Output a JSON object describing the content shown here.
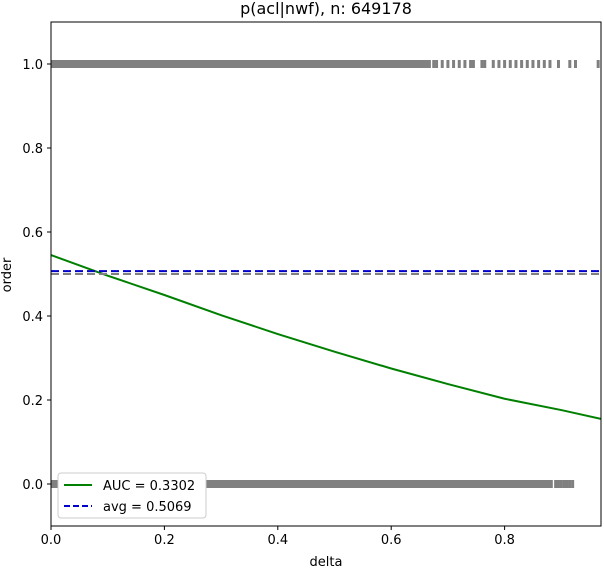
{
  "chart_data": {
    "type": "scatter",
    "title": "p(acl|nwf), n: 649178",
    "xlabel": "delta",
    "ylabel": "order",
    "xlim": [
      0.0,
      0.97
    ],
    "ylim": [
      -0.1,
      1.1
    ],
    "xticks": [
      "0.0",
      "0.2",
      "0.4",
      "0.6",
      "0.8"
    ],
    "yticks": [
      "0.0",
      "0.2",
      "0.4",
      "0.6",
      "0.8",
      "1.0"
    ],
    "grid": false,
    "legend_position": "lower-left",
    "series": [
      {
        "kind": "scatter",
        "color": "#808080",
        "y": 1.0,
        "dense_range": [
          0.0,
          0.67
        ],
        "sparse_x": [
          0.675,
          0.68,
          0.69,
          0.7,
          0.71,
          0.72,
          0.73,
          0.74,
          0.745,
          0.76,
          0.765,
          0.78,
          0.79,
          0.8,
          0.81,
          0.82,
          0.83,
          0.84,
          0.85,
          0.86,
          0.87,
          0.88,
          0.895,
          0.915,
          0.925,
          0.965
        ]
      },
      {
        "kind": "scatter",
        "color": "#808080",
        "y": 0.0,
        "dense_range": [
          0.0,
          0.885
        ],
        "sparse_x": [
          0.89,
          0.895,
          0.9,
          0.905,
          0.91,
          0.915,
          0.92
        ]
      },
      {
        "kind": "line",
        "name": "AUC = 0.3302",
        "color": "#008000",
        "x": [
          0.0,
          0.1,
          0.2,
          0.3,
          0.4,
          0.5,
          0.6,
          0.7,
          0.8,
          0.9,
          0.97
        ],
        "y": [
          0.545,
          0.496,
          0.45,
          0.402,
          0.357,
          0.315,
          0.275,
          0.238,
          0.203,
          0.176,
          0.155
        ]
      },
      {
        "kind": "hline",
        "name": "avg = 0.5069",
        "color": "#0000cc",
        "style": "dashed",
        "y": 0.5069
      },
      {
        "kind": "hline",
        "color": "#808080",
        "style": "dashed",
        "y": 0.5
      }
    ]
  }
}
